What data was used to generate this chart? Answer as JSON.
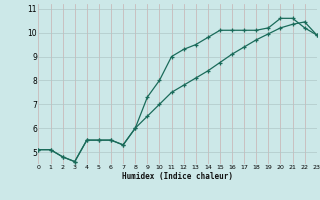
{
  "xlabel": "Humidex (Indice chaleur)",
  "background_color": "#cce8e8",
  "grid_color_major": "#b8c8c8",
  "grid_color_minor": "#d4b8b8",
  "line_color": "#1a6b5a",
  "xlim": [
    0,
    23
  ],
  "ylim": [
    4.5,
    11.2
  ],
  "xticks": [
    0,
    1,
    2,
    3,
    4,
    5,
    6,
    7,
    8,
    9,
    10,
    11,
    12,
    13,
    14,
    15,
    16,
    17,
    18,
    19,
    20,
    21,
    22,
    23
  ],
  "yticks": [
    5,
    6,
    7,
    8,
    9,
    10,
    11
  ],
  "series1_x": [
    0,
    1,
    2,
    3,
    4,
    5,
    6,
    7,
    8,
    9,
    10,
    11,
    12,
    13,
    14,
    15,
    16,
    17,
    18,
    19,
    20,
    21,
    22,
    23
  ],
  "series1_y": [
    5.1,
    5.1,
    4.8,
    4.6,
    5.5,
    5.5,
    5.5,
    5.3,
    6.0,
    7.3,
    8.0,
    9.0,
    9.3,
    9.5,
    9.8,
    10.1,
    10.1,
    10.1,
    10.1,
    10.2,
    10.6,
    10.6,
    10.2,
    9.9
  ],
  "series2_x": [
    0,
    1,
    2,
    3,
    4,
    5,
    6,
    7,
    8,
    9,
    10,
    11,
    12,
    13,
    14,
    15,
    16,
    17,
    18,
    19,
    20,
    21,
    22,
    23
  ],
  "series2_y": [
    5.1,
    5.1,
    4.8,
    4.6,
    5.5,
    5.5,
    5.5,
    5.3,
    6.0,
    6.5,
    7.0,
    7.5,
    7.8,
    8.1,
    8.4,
    8.75,
    9.1,
    9.4,
    9.7,
    9.95,
    10.2,
    10.35,
    10.45,
    9.9
  ]
}
